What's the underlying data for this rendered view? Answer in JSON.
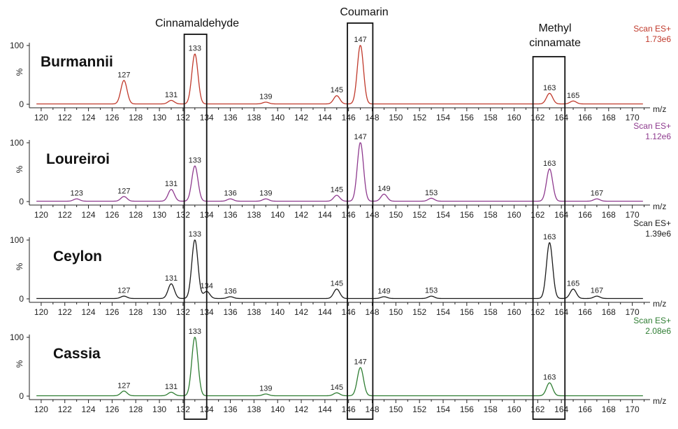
{
  "annotations": {
    "cinnamaldehyde": "Cinnamaldehyde",
    "coumarin": "Coumarin",
    "methyl_line1": "Methyl",
    "methyl_line2": "cinnamate"
  },
  "chart_data": [
    {
      "type": "line",
      "name": "Burmannii",
      "scan_label": "Scan ES+",
      "intensity": "1.73e6",
      "color": "#c0392b",
      "xlabel": "m/z",
      "ylabel": "%",
      "xlim": [
        119,
        171.5
      ],
      "ylim": [
        0,
        100
      ],
      "yticks": [
        0,
        100
      ],
      "xticks": [
        120,
        122,
        124,
        126,
        128,
        130,
        132,
        134,
        136,
        138,
        140,
        142,
        144,
        146,
        148,
        150,
        152,
        154,
        156,
        158,
        160,
        162,
        164,
        166,
        168,
        170
      ],
      "peaks": [
        {
          "x": 127,
          "y": 40,
          "label": "127"
        },
        {
          "x": 131,
          "y": 6,
          "label": "131"
        },
        {
          "x": 133,
          "y": 85,
          "label": "133"
        },
        {
          "x": 139,
          "y": 3,
          "label": "139"
        },
        {
          "x": 145,
          "y": 14,
          "label": "145"
        },
        {
          "x": 147,
          "y": 100,
          "label": "147"
        },
        {
          "x": 163,
          "y": 18,
          "label": "163"
        },
        {
          "x": 165,
          "y": 5,
          "label": "165"
        }
      ]
    },
    {
      "type": "line",
      "name": "Loureiroi",
      "scan_label": "Scan ES+",
      "intensity": "1.12e6",
      "color": "#8e3a8e",
      "xlabel": "m/z",
      "ylabel": "%",
      "xlim": [
        119,
        171.5
      ],
      "ylim": [
        0,
        100
      ],
      "yticks": [
        0,
        100
      ],
      "xticks": [
        120,
        122,
        124,
        126,
        128,
        130,
        132,
        134,
        136,
        138,
        140,
        142,
        144,
        146,
        148,
        150,
        152,
        154,
        156,
        158,
        160,
        162,
        164,
        166,
        168,
        170
      ],
      "peaks": [
        {
          "x": 123,
          "y": 4,
          "label": "123"
        },
        {
          "x": 127,
          "y": 8,
          "label": "127"
        },
        {
          "x": 131,
          "y": 20,
          "label": "131"
        },
        {
          "x": 133,
          "y": 60,
          "label": "133"
        },
        {
          "x": 136,
          "y": 4,
          "label": "136"
        },
        {
          "x": 139,
          "y": 4,
          "label": "139"
        },
        {
          "x": 145,
          "y": 10,
          "label": "145"
        },
        {
          "x": 147,
          "y": 100,
          "label": "147"
        },
        {
          "x": 149,
          "y": 12,
          "label": "149"
        },
        {
          "x": 153,
          "y": 5,
          "label": "153"
        },
        {
          "x": 163,
          "y": 55,
          "label": "163"
        },
        {
          "x": 167,
          "y": 4,
          "label": "167"
        }
      ]
    },
    {
      "type": "line",
      "name": "Ceylon",
      "scan_label": "Scan ES+",
      "intensity": "1.39e6",
      "color": "#1a1a1a",
      "xlabel": "m/z",
      "ylabel": "%",
      "xlim": [
        119,
        171.5
      ],
      "ylim": [
        0,
        100
      ],
      "yticks": [
        0,
        100
      ],
      "xticks": [
        120,
        122,
        124,
        126,
        128,
        130,
        132,
        134,
        136,
        138,
        140,
        142,
        144,
        146,
        148,
        150,
        152,
        154,
        156,
        158,
        160,
        162,
        164,
        166,
        168,
        170
      ],
      "peaks": [
        {
          "x": 127,
          "y": 4,
          "label": "127"
        },
        {
          "x": 131,
          "y": 25,
          "label": "131"
        },
        {
          "x": 133,
          "y": 100,
          "label": "133"
        },
        {
          "x": 134,
          "y": 12,
          "label": "134"
        },
        {
          "x": 136,
          "y": 3,
          "label": "136"
        },
        {
          "x": 145,
          "y": 16,
          "label": "145"
        },
        {
          "x": 149,
          "y": 3,
          "label": "149"
        },
        {
          "x": 153,
          "y": 4,
          "label": "153"
        },
        {
          "x": 163,
          "y": 95,
          "label": "163"
        },
        {
          "x": 165,
          "y": 16,
          "label": "165"
        },
        {
          "x": 167,
          "y": 4,
          "label": "167"
        }
      ]
    },
    {
      "type": "line",
      "name": "Cassia",
      "scan_label": "Scan ES+",
      "intensity": "2.08e6",
      "color": "#2e7d32",
      "xlabel": "m/z",
      "ylabel": "%",
      "xlim": [
        119,
        171.5
      ],
      "ylim": [
        0,
        100
      ],
      "yticks": [
        0,
        100
      ],
      "xticks": [
        120,
        122,
        124,
        126,
        128,
        130,
        132,
        134,
        136,
        138,
        140,
        142,
        144,
        146,
        148,
        150,
        152,
        154,
        156,
        158,
        160,
        162,
        164,
        166,
        168,
        170
      ],
      "peaks": [
        {
          "x": 127,
          "y": 8,
          "label": "127"
        },
        {
          "x": 131,
          "y": 6,
          "label": "131"
        },
        {
          "x": 133,
          "y": 100,
          "label": "133"
        },
        {
          "x": 139,
          "y": 3,
          "label": "139"
        },
        {
          "x": 145,
          "y": 5,
          "label": "145"
        },
        {
          "x": 147,
          "y": 48,
          "label": "147"
        },
        {
          "x": 163,
          "y": 22,
          "label": "163"
        }
      ]
    }
  ]
}
